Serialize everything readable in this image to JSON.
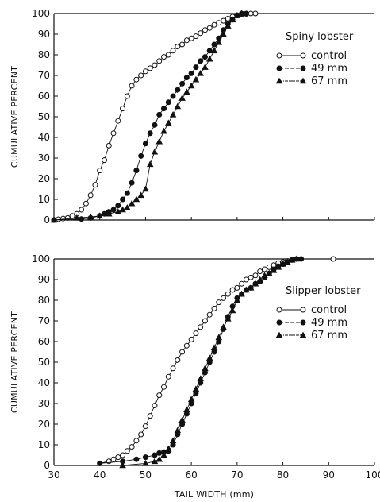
{
  "chart_data": [
    {
      "type": "line",
      "panel": "top",
      "legend_title": "Spiny lobster",
      "legend_position": "right-middle",
      "ylabel": "CUMULATIVE PERCENT",
      "xlabel": "",
      "xlim": [
        30,
        100
      ],
      "ylim": [
        0,
        100
      ],
      "yticks": [
        "0",
        "10",
        "20",
        "30",
        "40",
        "50",
        "60",
        "70",
        "80",
        "90",
        "100"
      ],
      "xticks": [],
      "series": [
        {
          "name": "control",
          "marker": "open-circle",
          "x": [
            30,
            31,
            32,
            33,
            34,
            35,
            36,
            37,
            38,
            39,
            40,
            41,
            42,
            43,
            44,
            45,
            46,
            47,
            48,
            49,
            50,
            51,
            52,
            53,
            54,
            55,
            56,
            57,
            58,
            59,
            60,
            61,
            62,
            63,
            64,
            65,
            66,
            67,
            68,
            69,
            70,
            71,
            72,
            73,
            74
          ],
          "y": [
            0,
            0.4,
            0.7,
            1,
            2,
            3,
            5,
            8,
            12,
            17,
            24,
            29,
            36,
            42,
            48,
            54,
            60,
            65,
            68,
            70,
            72,
            73.5,
            75,
            77,
            79,
            80,
            82,
            84,
            85,
            87,
            88,
            89,
            90.5,
            92,
            93,
            94.5,
            95.5,
            96.5,
            97.5,
            98.5,
            99.2,
            99.6,
            99.8,
            100,
            100
          ]
        },
        {
          "name": "49 mm",
          "marker": "filled-circle",
          "x": [
            30,
            36,
            38,
            40,
            41,
            42,
            43,
            44,
            45,
            46,
            47,
            48,
            49,
            50,
            51,
            52,
            53,
            54,
            55,
            56,
            57,
            58,
            59,
            60,
            61,
            62,
            63,
            64,
            65,
            66,
            67,
            68,
            69,
            70,
            71,
            72
          ],
          "y": [
            0,
            0.5,
            1,
            2,
            3,
            4,
            5,
            7,
            10,
            13,
            18,
            24,
            31,
            37,
            42,
            46,
            51,
            54,
            57,
            60,
            63,
            66,
            69,
            71,
            74,
            77,
            79,
            82,
            85,
            88,
            92,
            95,
            97,
            99,
            100,
            100
          ]
        },
        {
          "name": "67 mm",
          "marker": "filled-triangle",
          "x": [
            30,
            35,
            38,
            40,
            42,
            44,
            45,
            46,
            47,
            48,
            49,
            50,
            51,
            52,
            53,
            54,
            55,
            56,
            57,
            58,
            59,
            60,
            61,
            62,
            63,
            64,
            65,
            66,
            67,
            68,
            69,
            70,
            71
          ],
          "y": [
            0,
            1,
            1.5,
            2,
            3,
            4,
            5,
            6,
            8,
            10,
            12,
            15,
            27,
            33,
            38,
            43,
            47,
            51,
            55,
            59,
            62,
            65,
            68,
            71,
            74,
            78,
            82,
            86,
            90,
            94,
            97,
            99,
            100
          ]
        }
      ]
    },
    {
      "type": "line",
      "panel": "bottom",
      "legend_title": "Slipper lobster",
      "legend_position": "right-middle",
      "ylabel": "CUMULATIVE PERCENT",
      "xlabel": "TAIL WIDTH (mm)",
      "xlim": [
        30,
        100
      ],
      "ylim": [
        0,
        100
      ],
      "yticks": [
        "0",
        "10",
        "20",
        "30",
        "40",
        "50",
        "60",
        "70",
        "80",
        "90",
        "100"
      ],
      "xticks": [
        "30",
        "40",
        "50",
        "60",
        "70",
        "80",
        "90",
        "100"
      ],
      "series": [
        {
          "name": "control",
          "marker": "open-circle",
          "x": [
            40,
            42,
            43,
            44,
            45,
            46,
            47,
            48,
            49,
            50,
            51,
            52,
            53,
            54,
            55,
            56,
            57,
            58,
            59,
            60,
            61,
            62,
            63,
            64,
            65,
            66,
            67,
            68,
            69,
            70,
            71,
            72,
            73,
            74,
            75,
            76,
            77,
            78,
            79,
            80,
            81,
            82,
            83,
            91
          ],
          "y": [
            1,
            2,
            3,
            4,
            5,
            7,
            9,
            12,
            15,
            19,
            24,
            29,
            34,
            38,
            43,
            47,
            51,
            55,
            58,
            61,
            64,
            67,
            70,
            73,
            76,
            79,
            81,
            83,
            85,
            86,
            88,
            90,
            91,
            92,
            94,
            95,
            96,
            97,
            98,
            98.5,
            99,
            99.5,
            100,
            100
          ]
        },
        {
          "name": "49 mm",
          "marker": "filled-circle",
          "x": [
            40,
            45,
            48,
            50,
            52,
            53,
            54,
            55,
            56,
            57,
            58,
            59,
            60,
            61,
            62,
            63,
            64,
            65,
            66,
            67,
            68,
            69,
            70,
            71,
            72,
            73,
            74,
            75,
            76,
            77,
            78,
            79,
            80,
            81,
            82,
            83,
            84
          ],
          "y": [
            1,
            2,
            3,
            4,
            5,
            6,
            6.5,
            7,
            10,
            15,
            20,
            25,
            30,
            35,
            40,
            45,
            50,
            55,
            60,
            66,
            72,
            77,
            81,
            83,
            85,
            86,
            88,
            89,
            91,
            93,
            95,
            96.5,
            97.5,
            98.5,
            99.5,
            100,
            100
          ]
        },
        {
          "name": "67 mm",
          "marker": "filled-triangle",
          "x": [
            45,
            50,
            52,
            53,
            54,
            55,
            56,
            57,
            58,
            59,
            60,
            61,
            62,
            63,
            64,
            65,
            66,
            67,
            68,
            69,
            70,
            71,
            72,
            73,
            74,
            75,
            76,
            77,
            78,
            79,
            80,
            81,
            82,
            83
          ],
          "y": [
            0,
            1,
            2,
            3,
            5,
            8,
            12,
            17,
            22,
            27,
            32,
            37,
            42,
            47,
            52,
            57,
            62,
            67,
            71,
            75,
            80,
            83,
            85,
            86,
            88,
            90,
            92,
            93,
            94.5,
            96,
            97.5,
            98.5,
            99.5,
            100
          ]
        }
      ]
    }
  ]
}
